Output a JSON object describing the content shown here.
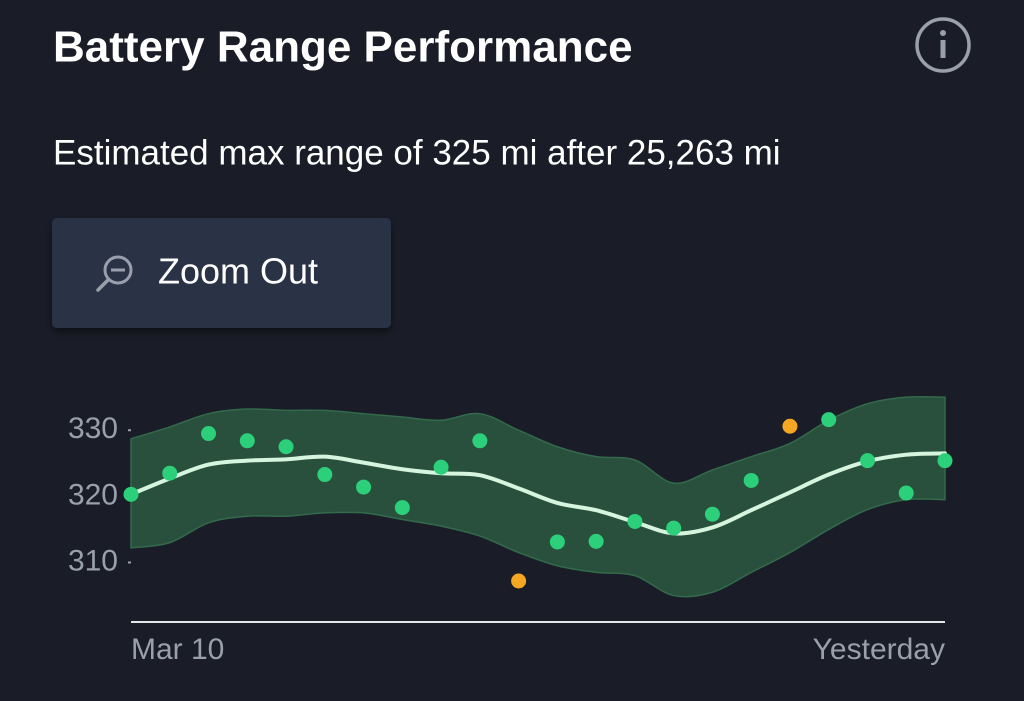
{
  "header": {
    "title": "Battery Range Performance",
    "subtitle": "Estimated max range of 325 mi after 25,263 mi"
  },
  "button": {
    "label": "Zoom Out"
  },
  "chart_data": {
    "type": "scatter",
    "categories": [
      "Mar 10",
      null,
      null,
      null,
      null,
      null,
      null,
      null,
      null,
      null,
      null,
      null,
      null,
      null,
      null,
      null,
      null,
      null,
      null,
      null,
      null,
      "Yesterday"
    ],
    "values": [
      320.3,
      323.5,
      329.5,
      328.4,
      327.5,
      323.3,
      321.4,
      318.3,
      324.4,
      328.4,
      307.2,
      313.1,
      313.2,
      316.2,
      315.2,
      317.3,
      322.4,
      330.6,
      331.6,
      325.4,
      320.5,
      325.4
    ],
    "point_colors": [
      "#2dd07a",
      "#2dd07a",
      "#2dd07a",
      "#2dd07a",
      "#2dd07a",
      "#2dd07a",
      "#2dd07a",
      "#2dd07a",
      "#2dd07a",
      "#2dd07a",
      "#f5a623",
      "#2dd07a",
      "#2dd07a",
      "#2dd07a",
      "#2dd07a",
      "#2dd07a",
      "#2dd07a",
      "#f5a623",
      "#2dd07a",
      "#2dd07a",
      "#2dd07a",
      "#2dd07a"
    ],
    "trend": [
      320.3,
      322.7,
      324.8,
      325.4,
      325.6,
      326,
      325.1,
      324.1,
      323.5,
      323.2,
      321.2,
      319,
      317.9,
      316.1,
      314.4,
      315.3,
      317.9,
      320.6,
      323.3,
      325.3,
      326.3,
      326.5
    ],
    "trend_color": "#d6f5df",
    "band_upper": [
      328.7,
      330.5,
      332.5,
      333.2,
      333,
      333,
      332.5,
      332,
      331.5,
      332.5,
      330,
      327.5,
      326,
      325.5,
      322,
      324,
      326,
      328,
      331.5,
      334,
      335,
      335
    ],
    "band_lower": [
      312.2,
      313,
      316,
      317,
      317,
      317.5,
      317.5,
      316.5,
      315.5,
      314,
      311.5,
      309.5,
      308.5,
      308,
      305,
      305.5,
      308.5,
      311.5,
      315,
      318,
      319.5,
      319.5
    ],
    "band_color": "#29503c",
    "ylim": [
      301,
      336
    ],
    "yticks": [
      310,
      320,
      330
    ]
  }
}
